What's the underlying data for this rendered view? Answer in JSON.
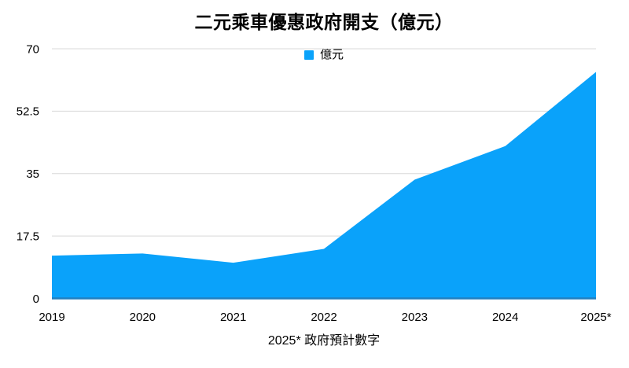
{
  "page": {
    "title": "二元乘車優惠政府開支（億元）",
    "footnote": "2025* 政府預計數字"
  },
  "chart_data": {
    "type": "area",
    "title": "二元乘車優惠政府開支（億元）",
    "categories": [
      "2019",
      "2020",
      "2021",
      "2022",
      "2023",
      "2024",
      "2025*"
    ],
    "series": [
      {
        "name": "億元",
        "values": [
          12,
          12.6,
          10,
          13.9,
          33.3,
          42.7,
          63.5
        ]
      }
    ],
    "xlabel": "",
    "ylabel": "",
    "ylim": [
      0,
      70
    ],
    "yticks": [
      0,
      17.5,
      35,
      52.5,
      70
    ],
    "ytick_labels": [
      "0",
      "17.5",
      "35",
      "52.5",
      "70"
    ],
    "grid": "horizontal",
    "legend_position": "top-center",
    "footnote": "2025* 政府預計數字",
    "colors": {
      "area": "#0aa2fa",
      "axis_line": "#2180c0",
      "gridline": "#d8d8d8",
      "text": "#000000"
    }
  }
}
